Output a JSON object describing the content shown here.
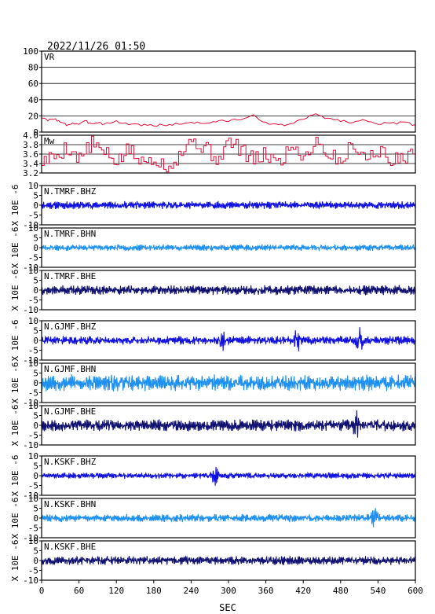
{
  "header": {
    "datetime": "2022/11/26 01:50"
  },
  "colors": {
    "vr": "#e0103c",
    "mw": "#e0103c",
    "bhz": "#1010e0",
    "bhn": "#1e90f0",
    "bhe": "#101070",
    "axis": "#000000"
  },
  "chart_data": {
    "type": "line",
    "xlabel": "SEC",
    "xlim": [
      0,
      600
    ],
    "xticks": [
      0,
      60,
      120,
      180,
      240,
      300,
      360,
      420,
      480,
      540,
      600
    ],
    "xtick_labels": [
      "0",
      "60",
      "120",
      "180",
      "240",
      "300",
      "360",
      "420",
      "480",
      "540",
      "600"
    ],
    "panels": [
      {
        "id": "vr",
        "label": "VR",
        "ylim": [
          0,
          100
        ],
        "yticks": [
          100,
          80,
          60,
          40,
          20,
          0
        ],
        "ytick_labels": [
          "100",
          "80",
          "60",
          "40",
          "20",
          "0"
        ],
        "grid": true,
        "color_key": "vr",
        "x": [
          0,
          10,
          20,
          30,
          40,
          50,
          60,
          70,
          80,
          90,
          100,
          120,
          140,
          160,
          180,
          200,
          220,
          240,
          260,
          280,
          300,
          320,
          340,
          360,
          380,
          400,
          420,
          440,
          460,
          480,
          500,
          520,
          540,
          560,
          580,
          600
        ],
        "values": [
          18,
          14,
          17,
          12,
          9,
          11,
          10,
          13,
          11,
          12,
          10,
          13,
          10,
          9,
          8,
          9,
          10,
          12,
          11,
          13,
          14,
          16,
          20,
          12,
          8,
          10,
          16,
          22,
          17,
          14,
          12,
          15,
          11,
          10,
          12,
          9
        ]
      },
      {
        "id": "mw",
        "label": "Mw",
        "ylim": [
          3.2,
          4.0
        ],
        "yticks": [
          4.0,
          3.8,
          3.6,
          3.4,
          3.2
        ],
        "ytick_labels": [
          "4.0",
          "3.8",
          "3.6",
          "3.4",
          "3.2"
        ],
        "grid": true,
        "color_key": "mw",
        "x": [
          0,
          20,
          40,
          60,
          80,
          100,
          120,
          140,
          160,
          180,
          200,
          220,
          240,
          260,
          280,
          300,
          320,
          340,
          360,
          380,
          400,
          420,
          440,
          460,
          480,
          500,
          520,
          540,
          560,
          580,
          600
        ],
        "values": [
          3.45,
          3.55,
          3.75,
          3.5,
          3.85,
          3.6,
          3.45,
          3.7,
          3.4,
          3.55,
          3.3,
          3.6,
          3.9,
          3.75,
          3.5,
          3.85,
          3.7,
          3.45,
          3.6,
          3.4,
          3.8,
          3.55,
          3.9,
          3.6,
          3.45,
          3.85,
          3.5,
          3.7,
          3.4,
          3.6,
          3.5
        ]
      },
      {
        "id": "tmrf-bhz",
        "label": "N.TMRF.BHZ",
        "ylim": [
          -10,
          10
        ],
        "amplitude": 1.6,
        "color_key": "bhz",
        "seed": 11,
        "bursts": []
      },
      {
        "id": "tmrf-bhn",
        "label": "N.TMRF.BHN",
        "ylim": [
          -10,
          10
        ],
        "amplitude": 1.3,
        "color_key": "bhn",
        "seed": 23,
        "bursts": []
      },
      {
        "id": "tmrf-bhe",
        "label": "N.TMRF.BHE",
        "ylim": [
          -10,
          10
        ],
        "amplitude": 2.0,
        "color_key": "bhe",
        "seed": 37,
        "bursts": []
      },
      {
        "id": "gjmf-bhz",
        "label": "N.GJMF.BHZ",
        "ylim": [
          -10,
          10
        ],
        "amplitude": 1.8,
        "color_key": "bhz",
        "seed": 41,
        "bursts": [
          [
            290,
            3.5
          ],
          [
            410,
            3.8
          ],
          [
            510,
            4.5
          ]
        ]
      },
      {
        "id": "gjmf-bhn",
        "label": "N.GJMF.BHN",
        "ylim": [
          -10,
          10
        ],
        "amplitude": 3.4,
        "color_key": "bhn",
        "seed": 53,
        "bursts": []
      },
      {
        "id": "gjmf-bhe",
        "label": "N.GJMF.BHE",
        "ylim": [
          -10,
          10
        ],
        "amplitude": 2.4,
        "color_key": "bhe",
        "seed": 67,
        "bursts": [
          [
            505,
            4.5
          ]
        ]
      },
      {
        "id": "kskf-bhz",
        "label": "N.KSKF.BHZ",
        "ylim": [
          -10,
          10
        ],
        "amplitude": 1.2,
        "color_key": "bhz",
        "seed": 71,
        "bursts": [
          [
            278,
            4.0
          ]
        ]
      },
      {
        "id": "kskf-bhn",
        "label": "N.KSKF.BHN",
        "ylim": [
          -10,
          10
        ],
        "amplitude": 1.6,
        "color_key": "bhn",
        "seed": 83,
        "bursts": [
          [
            535,
            3.5
          ]
        ]
      },
      {
        "id": "kskf-bhe",
        "label": "N.KSKF.BHE",
        "ylim": [
          -10,
          10
        ],
        "amplitude": 1.8,
        "color_key": "bhe",
        "seed": 97,
        "bursts": []
      }
    ],
    "wave_yticks": [
      10,
      5,
      0,
      -5,
      -10
    ],
    "wave_ytick_labels": [
      "10",
      "5",
      "0",
      "-5",
      "-10"
    ],
    "wave_ylabel": "X 10E -6"
  }
}
